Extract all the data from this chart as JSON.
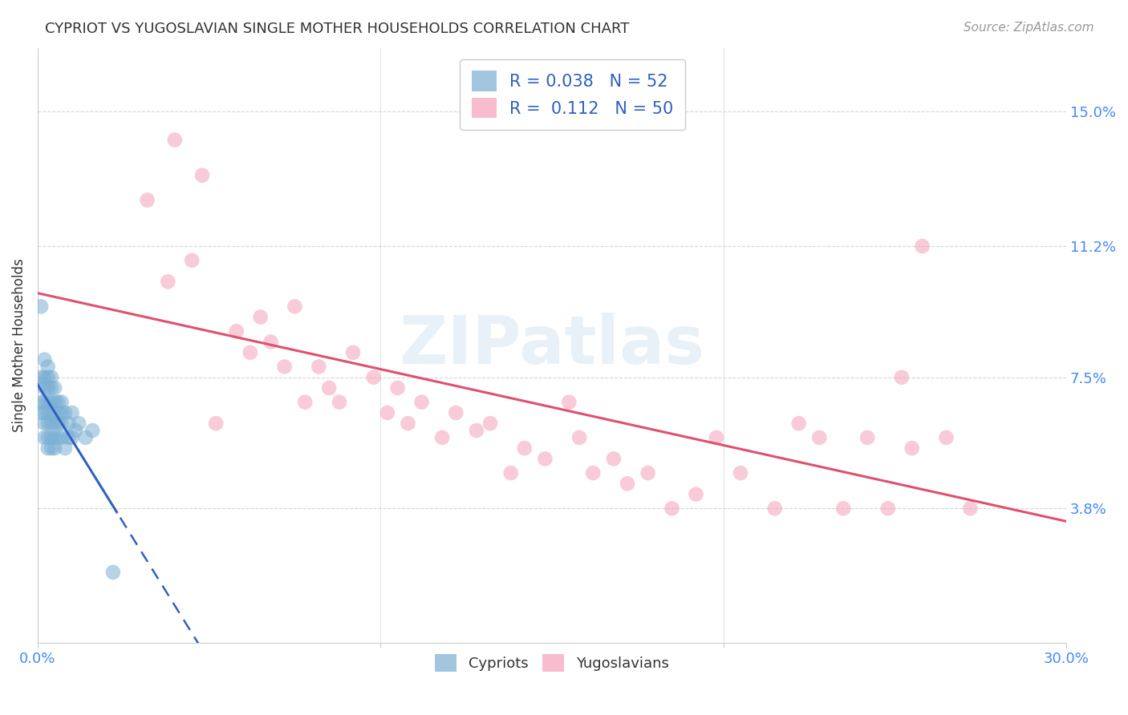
{
  "title": "CYPRIOT VS YUGOSLAVIAN SINGLE MOTHER HOUSEHOLDS CORRELATION CHART",
  "source": "Source: ZipAtlas.com",
  "ylabel": "Single Mother Households",
  "ytick_labels": [
    "3.8%",
    "7.5%",
    "11.2%",
    "15.0%"
  ],
  "ytick_values": [
    0.038,
    0.075,
    0.112,
    0.15
  ],
  "xlim": [
    0.0,
    0.3
  ],
  "ylim": [
    0.0,
    0.168
  ],
  "watermark_text": "ZIPatlas",
  "cypriot_color": "#7bafd4",
  "yugoslavian_color": "#f5a0b8",
  "cypriot_line_color": "#3060c0",
  "yugoslavian_line_color": "#e05070",
  "cypriot_R": 0.038,
  "yugoslavian_R": 0.112,
  "cypriot_N": 52,
  "yugoslavian_N": 50,
  "background_color": "#ffffff",
  "grid_color": "#cccccc",
  "axis_label_color": "#4488ff",
  "title_color": "#333333",
  "legend_text_color": "#3060c0",
  "cypriot_points_x": [
    0.001,
    0.001,
    0.001,
    0.001,
    0.001,
    0.002,
    0.002,
    0.002,
    0.002,
    0.002,
    0.002,
    0.002,
    0.003,
    0.003,
    0.003,
    0.003,
    0.003,
    0.003,
    0.003,
    0.003,
    0.004,
    0.004,
    0.004,
    0.004,
    0.004,
    0.004,
    0.004,
    0.005,
    0.005,
    0.005,
    0.005,
    0.005,
    0.005,
    0.006,
    0.006,
    0.006,
    0.006,
    0.007,
    0.007,
    0.007,
    0.007,
    0.008,
    0.008,
    0.009,
    0.009,
    0.01,
    0.01,
    0.011,
    0.012,
    0.014,
    0.016,
    0.022
  ],
  "cypriot_points_y": [
    0.095,
    0.075,
    0.073,
    0.068,
    0.065,
    0.08,
    0.075,
    0.072,
    0.068,
    0.065,
    0.062,
    0.058,
    0.078,
    0.075,
    0.072,
    0.068,
    0.065,
    0.062,
    0.058,
    0.055,
    0.075,
    0.072,
    0.068,
    0.065,
    0.062,
    0.058,
    0.055,
    0.072,
    0.068,
    0.065,
    0.062,
    0.058,
    0.055,
    0.068,
    0.065,
    0.062,
    0.058,
    0.068,
    0.065,
    0.062,
    0.058,
    0.065,
    0.055,
    0.062,
    0.058,
    0.065,
    0.058,
    0.06,
    0.062,
    0.058,
    0.06,
    0.02
  ],
  "yugoslavian_points_x": [
    0.032,
    0.038,
    0.04,
    0.045,
    0.048,
    0.052,
    0.058,
    0.062,
    0.065,
    0.068,
    0.072,
    0.075,
    0.078,
    0.082,
    0.085,
    0.088,
    0.092,
    0.098,
    0.102,
    0.105,
    0.108,
    0.112,
    0.118,
    0.122,
    0.128,
    0.132,
    0.138,
    0.142,
    0.148,
    0.155,
    0.158,
    0.162,
    0.168,
    0.172,
    0.178,
    0.185,
    0.192,
    0.198,
    0.205,
    0.215,
    0.222,
    0.228,
    0.235,
    0.242,
    0.248,
    0.252,
    0.255,
    0.258,
    0.265,
    0.272
  ],
  "yugoslavian_points_y": [
    0.125,
    0.102,
    0.142,
    0.108,
    0.132,
    0.062,
    0.088,
    0.082,
    0.092,
    0.085,
    0.078,
    0.095,
    0.068,
    0.078,
    0.072,
    0.068,
    0.082,
    0.075,
    0.065,
    0.072,
    0.062,
    0.068,
    0.058,
    0.065,
    0.06,
    0.062,
    0.048,
    0.055,
    0.052,
    0.068,
    0.058,
    0.048,
    0.052,
    0.045,
    0.048,
    0.038,
    0.042,
    0.058,
    0.048,
    0.038,
    0.062,
    0.058,
    0.038,
    0.058,
    0.038,
    0.075,
    0.055,
    0.112,
    0.058,
    0.038
  ],
  "cypriot_trend_x0": 0.0,
  "cypriot_trend_x_solid_end": 0.025,
  "cypriot_trend_x_end": 0.3,
  "yugoslavian_trend_x0": 0.0,
  "yugoslavian_trend_x_end": 0.3
}
